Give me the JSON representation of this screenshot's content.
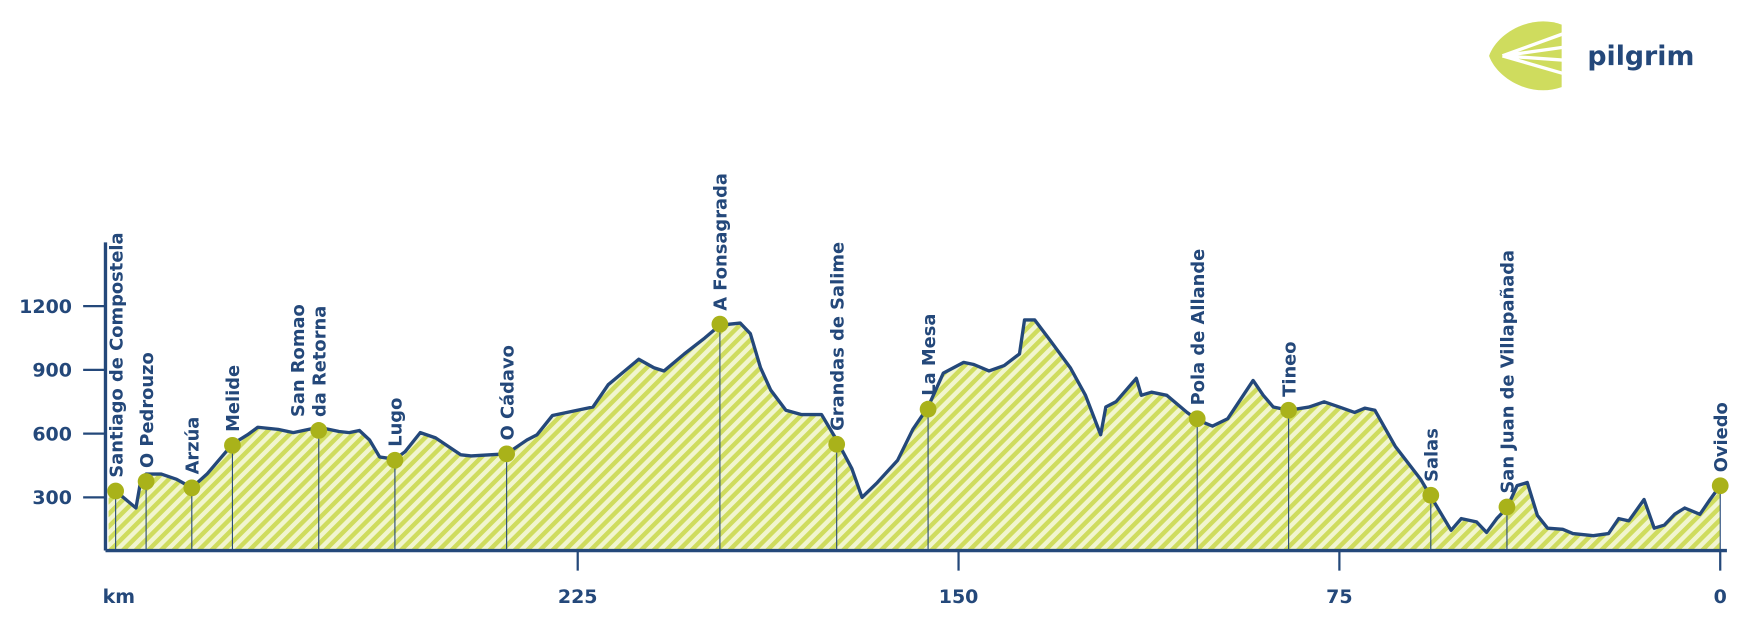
{
  "logo_text": "pilgrim",
  "chart_data": {
    "type": "elevation-profile",
    "x_label": "km",
    "xlim": [
      318,
      0
    ],
    "xticks": [
      225,
      150,
      75,
      0
    ],
    "ylim": [
      50,
      1500
    ],
    "yticks": [
      300,
      600,
      900,
      1200
    ],
    "line_color": "#24487a",
    "fill_color": "#cfdc5e",
    "point_color": "#a9b21a",
    "x": [
      317.4,
      316,
      312,
      311,
      310,
      307,
      304,
      301,
      298,
      293,
      290,
      288,
      284,
      281,
      276,
      272,
      270,
      268,
      266,
      264,
      261,
      259,
      256,
      253,
      248,
      246,
      239,
      235,
      233,
      230,
      226,
      222,
      219,
      213,
      210,
      208,
      204,
      200,
      197,
      193,
      191,
      189,
      187,
      184,
      181,
      177,
      174,
      171,
      169,
      166,
      162,
      159,
      156,
      153,
      149,
      147,
      144,
      141,
      138,
      137,
      135,
      132,
      128,
      125,
      122,
      121,
      119,
      115,
      114,
      112,
      109,
      105,
      103,
      100,
      97,
      92,
      90,
      88,
      85,
      81,
      78,
      75,
      72,
      70,
      68,
      64,
      59,
      57,
      55,
      53,
      51,
      48,
      46,
      44,
      42,
      40,
      38,
      36,
      34,
      31,
      29,
      25,
      22,
      20,
      18,
      15,
      13,
      11,
      9,
      7,
      4,
      2,
      0
    ],
    "values": [
      330,
      330,
      250,
      385,
      410,
      410,
      385,
      345,
      410,
      550,
      595,
      630,
      620,
      605,
      630,
      610,
      605,
      615,
      570,
      490,
      480,
      515,
      605,
      580,
      500,
      495,
      505,
      570,
      595,
      685,
      705,
      725,
      830,
      950,
      910,
      895,
      975,
      1050,
      1110,
      1120,
      1070,
      910,
      805,
      710,
      690,
      690,
      570,
      435,
      300,
      370,
      475,
      620,
      725,
      885,
      935,
      925,
      895,
      920,
      975,
      1135,
      1135,
      1040,
      910,
      780,
      595,
      725,
      750,
      860,
      780,
      795,
      780,
      700,
      665,
      635,
      670,
      850,
      780,
      725,
      710,
      725,
      750,
      725,
      700,
      720,
      710,
      540,
      385,
      305,
      225,
      145,
      200,
      185,
      135,
      200,
      250,
      355,
      370,
      215,
      155,
      150,
      130,
      120,
      130,
      200,
      190,
      290,
      155,
      170,
      220,
      250,
      220,
      290,
      355
    ],
    "waypoints": [
      {
        "lines": [
          "Santiago de Compostela"
        ],
        "km": 316,
        "elevation": 330
      },
      {
        "lines": [
          "O Pedrouzo"
        ],
        "km": 310,
        "elevation": 375
      },
      {
        "lines": [
          "Arzúa"
        ],
        "km": 301,
        "elevation": 345
      },
      {
        "lines": [
          "Melide"
        ],
        "km": 293,
        "elevation": 545
      },
      {
        "lines": [
          "San Romao",
          "da Retorna"
        ],
        "km": 276,
        "elevation": 615
      },
      {
        "lines": [
          "Lugo"
        ],
        "km": 261,
        "elevation": 475
      },
      {
        "lines": [
          "O Cádavo"
        ],
        "km": 239,
        "elevation": 505
      },
      {
        "lines": [
          "A Fonsagrada"
        ],
        "km": 197,
        "elevation": 1115
      },
      {
        "lines": [
          "Grandas de Salime"
        ],
        "km": 174,
        "elevation": 550
      },
      {
        "lines": [
          "La Mesa"
        ],
        "km": 156,
        "elevation": 715
      },
      {
        "lines": [
          "Pola de Allande"
        ],
        "km": 103,
        "elevation": 670
      },
      {
        "lines": [
          "Tineo"
        ],
        "km": 85,
        "elevation": 710
      },
      {
        "lines": [
          "Salas"
        ],
        "km": 57,
        "elevation": 310
      },
      {
        "lines": [
          "San Juan de Villapañada"
        ],
        "km": 42,
        "elevation": 255
      },
      {
        "lines": [
          "Oviedo"
        ],
        "km": 0,
        "elevation": 355
      }
    ]
  }
}
